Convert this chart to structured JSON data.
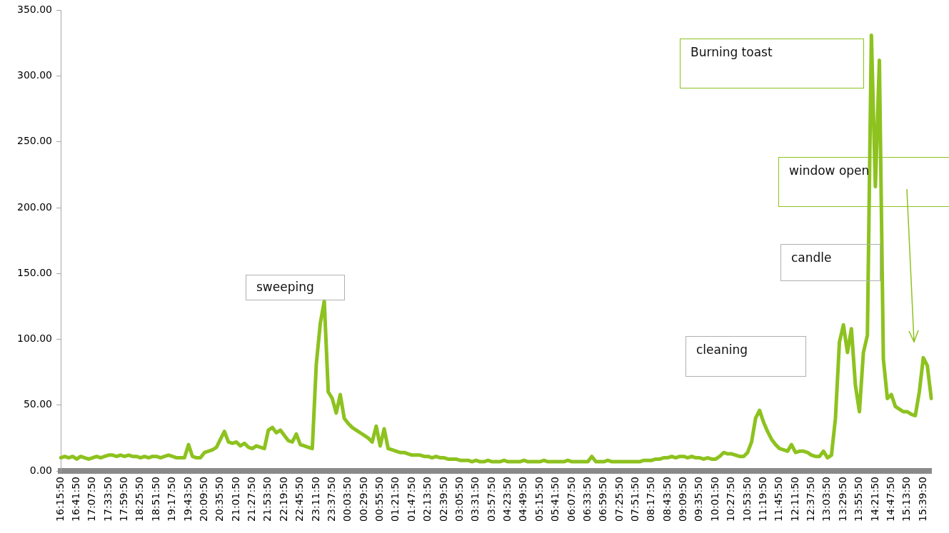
{
  "chart_data": {
    "type": "line",
    "color": "#8dc21f",
    "marker": "none",
    "line_style": "solid",
    "ylim": [
      0,
      350
    ],
    "yticks": [
      {
        "value": 0,
        "label": "0.00"
      },
      {
        "value": 50,
        "label": "50.00"
      },
      {
        "value": 100,
        "label": "100.00"
      },
      {
        "value": 150,
        "label": "150.00"
      },
      {
        "value": 200,
        "label": "200.00"
      },
      {
        "value": 250,
        "label": "250.00"
      },
      {
        "value": 300,
        "label": "300.00"
      },
      {
        "value": 350,
        "label": "350.00"
      }
    ],
    "annotations": [
      "Burning toast",
      "window open",
      "candle",
      "cleaning",
      "sweeping"
    ],
    "categories": [
      "16:15:50",
      null,
      null,
      null,
      "16:41:50",
      null,
      null,
      null,
      "17:07:50",
      null,
      null,
      null,
      "17:33:50",
      null,
      null,
      null,
      "17:59:50",
      null,
      null,
      null,
      "18:25:50",
      null,
      null,
      null,
      "18:51:50",
      null,
      null,
      null,
      "19:17:50",
      null,
      null,
      null,
      "19:43:50",
      null,
      null,
      null,
      "20:09:50",
      null,
      null,
      null,
      "20:35:50",
      null,
      null,
      null,
      "21:01:50",
      null,
      null,
      null,
      "21:27:50",
      null,
      null,
      null,
      "21:53:50",
      null,
      null,
      null,
      "22:19:50",
      null,
      null,
      null,
      "22:45:50",
      null,
      null,
      null,
      "23:11:50",
      null,
      null,
      null,
      "23:37:50",
      null,
      null,
      null,
      "00:03:50",
      null,
      null,
      null,
      "00:29:50",
      null,
      null,
      null,
      "00:55:50",
      null,
      null,
      null,
      "01:21:50",
      null,
      null,
      null,
      "01:47:50",
      null,
      null,
      null,
      "02:13:50",
      null,
      null,
      null,
      "02:39:50",
      null,
      null,
      null,
      "03:05:50",
      null,
      null,
      null,
      "03:31:50",
      null,
      null,
      null,
      "03:57:50",
      null,
      null,
      null,
      "04:23:50",
      null,
      null,
      null,
      "04:49:50",
      null,
      null,
      null,
      "05:15:50",
      null,
      null,
      null,
      "05:41:50",
      null,
      null,
      null,
      "06:07:50",
      null,
      null,
      null,
      "06:33:50",
      null,
      null,
      null,
      "06:59:50",
      null,
      null,
      null,
      "07:25:50",
      null,
      null,
      null,
      "07:51:50",
      null,
      null,
      null,
      "08:17:50",
      null,
      null,
      null,
      "08:43:50",
      null,
      null,
      null,
      "09:09:50",
      null,
      null,
      null,
      "09:35:50",
      null,
      null,
      null,
      "10:01:50",
      null,
      null,
      null,
      "10:27:50",
      null,
      null,
      null,
      "10:53:50",
      null,
      null,
      null,
      "11:19:50",
      null,
      null,
      null,
      "11:45:50",
      null,
      null,
      null,
      "12:11:50",
      null,
      null,
      null,
      "12:37:50",
      null,
      null,
      null,
      "13:03:50",
      null,
      null,
      null,
      "13:29:50",
      null,
      null,
      null,
      "13:55:50",
      null,
      null,
      null,
      "14:21:50",
      null,
      null,
      null,
      "14:47:50",
      null,
      null,
      null,
      "15:13:50",
      null,
      null,
      null,
      "15:39:50",
      null,
      null
    ],
    "values": [
      10,
      11,
      10,
      11,
      9,
      11,
      10,
      9,
      10,
      11,
      10,
      11,
      12,
      12,
      11,
      12,
      11,
      12,
      11,
      11,
      10,
      11,
      10,
      11,
      11,
      10,
      11,
      12,
      11,
      10,
      10,
      10,
      20,
      11,
      10,
      10,
      14,
      15,
      16,
      18,
      24,
      30,
      22,
      21,
      22,
      19,
      21,
      18,
      17,
      19,
      18,
      17,
      31,
      33,
      29,
      31,
      27,
      23,
      22,
      28,
      20,
      19,
      18,
      17,
      81,
      112,
      129,
      60,
      55,
      44,
      58,
      40,
      36,
      33,
      31,
      29,
      27,
      25,
      22,
      34,
      19,
      32,
      17,
      16,
      15,
      14,
      14,
      13,
      12,
      12,
      12,
      11,
      11,
      10,
      11,
      10,
      10,
      9,
      9,
      9,
      8,
      8,
      8,
      7,
      8,
      7,
      7,
      8,
      7,
      7,
      7,
      8,
      7,
      7,
      7,
      7,
      8,
      7,
      7,
      7,
      7,
      8,
      7,
      7,
      7,
      7,
      7,
      8,
      7,
      7,
      7,
      7,
      7,
      11,
      7,
      7,
      7,
      8,
      7,
      7,
      7,
      7,
      7,
      7,
      7,
      7,
      8,
      8,
      8,
      9,
      9,
      10,
      10,
      11,
      10,
      11,
      11,
      10,
      11,
      10,
      10,
      9,
      10,
      9,
      9,
      11,
      14,
      13,
      13,
      12,
      11,
      11,
      14,
      22,
      40,
      46,
      37,
      30,
      24,
      20,
      17,
      16,
      15,
      20,
      14,
      15,
      15,
      14,
      12,
      11,
      11,
      15,
      10,
      12,
      40,
      98,
      111,
      90,
      108,
      65,
      45,
      90,
      103,
      331,
      216,
      312,
      85,
      55,
      58,
      49,
      47,
      45,
      45,
      43,
      42,
      60,
      86,
      80,
      55
    ]
  }
}
